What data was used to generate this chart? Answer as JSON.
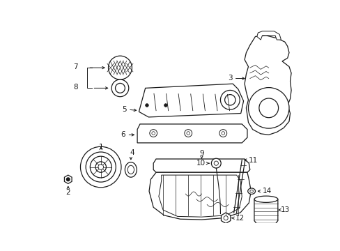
{
  "background_color": "#ffffff",
  "line_color": "#1a1a1a",
  "fig_width": 4.89,
  "fig_height": 3.6,
  "font_size": 7.5
}
